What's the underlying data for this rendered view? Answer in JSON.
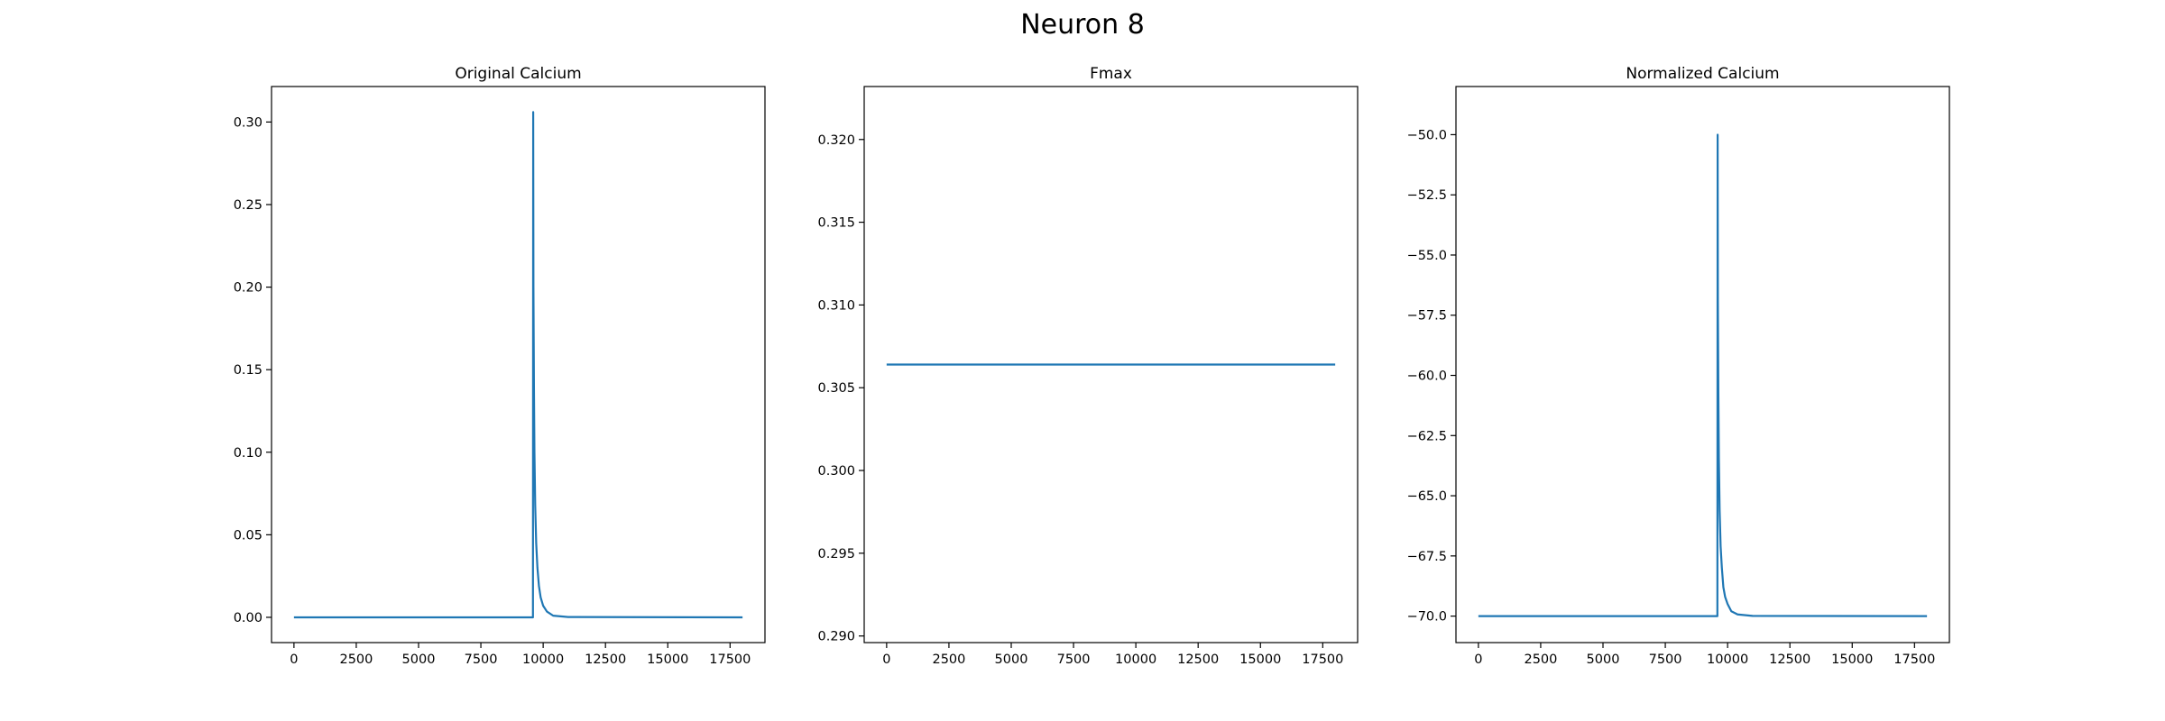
{
  "figure": {
    "title": "Neuron 8"
  },
  "chart_data": [
    {
      "type": "line",
      "title": "Original Calcium",
      "xlabel": "",
      "ylabel": "",
      "xlim": [
        -900,
        18900
      ],
      "ylim": [
        -0.0153,
        0.3215
      ],
      "xticks": [
        0,
        2500,
        5000,
        7500,
        10000,
        12500,
        15000,
        17500
      ],
      "xtick_labels": [
        "0",
        "2500",
        "5000",
        "7500",
        "10000",
        "12500",
        "15000",
        "17500"
      ],
      "yticks": [
        0.0,
        0.05,
        0.1,
        0.15,
        0.2,
        0.25,
        0.3
      ],
      "ytick_labels": [
        "0.00",
        "0.05",
        "0.10",
        "0.15",
        "0.20",
        "0.25",
        "0.30"
      ],
      "grid": false,
      "color": "#1f77b4",
      "series": [
        {
          "x": [
            0,
            9590,
            9600,
            9610,
            9630,
            9650,
            9680,
            9720,
            9770,
            9830,
            9900,
            10000,
            10150,
            10400,
            11000,
            18000
          ],
          "y": [
            0,
            0,
            0.306,
            0.2,
            0.14,
            0.1,
            0.068,
            0.045,
            0.03,
            0.019,
            0.012,
            0.007,
            0.0035,
            0.001,
            0.0002,
            0
          ]
        }
      ]
    },
    {
      "type": "line",
      "title": "Fmax",
      "xlabel": "",
      "ylabel": "",
      "xlim": [
        -900,
        18900
      ],
      "ylim": [
        0.2896,
        0.3232
      ],
      "xticks": [
        0,
        2500,
        5000,
        7500,
        10000,
        12500,
        15000,
        17500
      ],
      "xtick_labels": [
        "0",
        "2500",
        "5000",
        "7500",
        "10000",
        "12500",
        "15000",
        "17500"
      ],
      "yticks": [
        0.29,
        0.295,
        0.3,
        0.305,
        0.31,
        0.315,
        0.32
      ],
      "ytick_labels": [
        "0.290",
        "0.295",
        "0.300",
        "0.305",
        "0.310",
        "0.315",
        "0.320"
      ],
      "grid": false,
      "color": "#1f77b4",
      "series": [
        {
          "x": [
            0,
            18000
          ],
          "y": [
            0.3064,
            0.3064
          ]
        }
      ]
    },
    {
      "type": "line",
      "title": "Normalized Calcium",
      "xlabel": "",
      "ylabel": "",
      "xlim": [
        -900,
        18900
      ],
      "ylim": [
        -71.1,
        -48.0
      ],
      "xticks": [
        0,
        2500,
        5000,
        7500,
        10000,
        12500,
        15000,
        17500
      ],
      "xtick_labels": [
        "0",
        "2500",
        "5000",
        "7500",
        "10000",
        "12500",
        "15000",
        "17500"
      ],
      "yticks": [
        -70.0,
        -67.5,
        -65.0,
        -62.5,
        -60.0,
        -57.5,
        -55.0,
        -52.5,
        -50.0
      ],
      "ytick_labels": [
        "−70.0",
        "−67.5",
        "−65.0",
        "−62.5",
        "−60.0",
        "−57.5",
        "−55.0",
        "−52.5",
        "−50.0"
      ],
      "grid": false,
      "color": "#1f77b4",
      "series": [
        {
          "x": [
            0,
            9590,
            9600,
            9610,
            9630,
            9650,
            9680,
            9720,
            9770,
            9830,
            9900,
            10000,
            10150,
            10400,
            11000,
            18000
          ],
          "y": [
            -70,
            -70,
            -50,
            -56.9,
            -60.8,
            -63.5,
            -65.6,
            -67.1,
            -68.0,
            -68.8,
            -69.2,
            -69.5,
            -69.8,
            -69.93,
            -69.99,
            -70
          ]
        }
      ]
    }
  ]
}
